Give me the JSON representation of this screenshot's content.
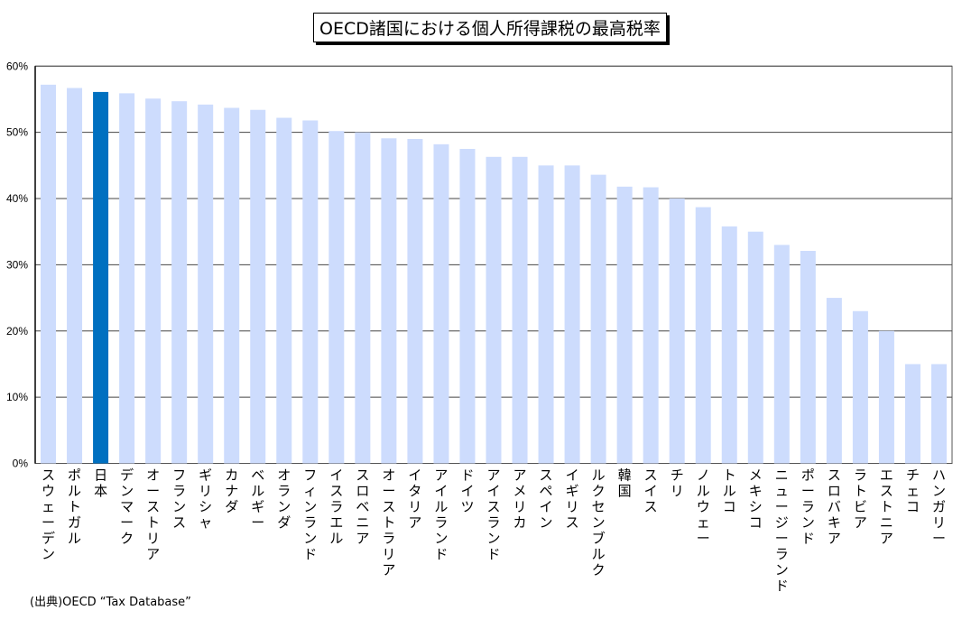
{
  "chart_data": {
    "type": "bar",
    "title": "OECD諸国における個人所得課税の最高税率",
    "categories": [
      "スウェーデン",
      "ポルトガル",
      "日本",
      "デンマーク",
      "オーストリア",
      "フランス",
      "ギリシャ",
      "カナダ",
      "ベルギー",
      "オランダ",
      "フィンランド",
      "イスラエル",
      "スロベニア",
      "オーストラリア",
      "イタリア",
      "アイルランド",
      "ドイツ",
      "アイスランド",
      "アメリカ",
      "スペイン",
      "イギリス",
      "ルクセンブルク",
      "韓国",
      "スイス",
      "チリ",
      "ノルウェー",
      "トルコ",
      "メキシコ",
      "ニュージーランド",
      "ポーランド",
      "スロバキア",
      "ラトビア",
      "エストニア",
      "チェコ",
      "ハンガリー"
    ],
    "values": [
      57.2,
      56.7,
      56.1,
      55.9,
      55.1,
      54.7,
      54.2,
      53.7,
      53.4,
      52.2,
      51.8,
      50.2,
      50.0,
      49.1,
      49.0,
      48.2,
      47.5,
      46.3,
      46.3,
      45.0,
      45.0,
      43.6,
      41.8,
      41.7,
      40.0,
      38.7,
      35.8,
      35.0,
      33.0,
      32.1,
      25.0,
      23.0,
      20.0,
      15.0,
      15.0
    ],
    "highlight": "日本",
    "ylim": [
      0,
      60
    ],
    "yticks": [
      "0%",
      "10%",
      "20%",
      "30%",
      "40%",
      "50%",
      "60%"
    ],
    "grid": true,
    "colors": {
      "bar": "#cddcfd",
      "highlight": "#0070c0",
      "grid": "#000000"
    }
  },
  "footer": "(出典)OECD “Tax Database”"
}
